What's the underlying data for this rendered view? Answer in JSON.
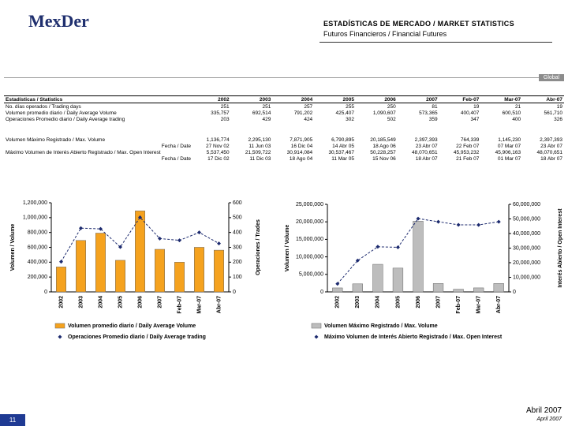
{
  "header": {
    "logo": "MexDer",
    "title": "ESTADÍSTICAS DE MERCADO / MARKET STATISTICS",
    "subtitle": "Futuros Financieros / Financial Futures"
  },
  "section": "Global",
  "table": {
    "header": [
      "Estadísticas / Statistics",
      "2002",
      "2003",
      "2004",
      "2005",
      "2006",
      "2007",
      "Feb-07",
      "Mar-07",
      "Abr-07"
    ],
    "groups": [
      [
        [
          "No. días operados / Trading days",
          "251",
          "251",
          "257",
          "255",
          "250",
          "81",
          "19",
          "21",
          "19"
        ],
        [
          "Volumen promedio diario / Daily Average Volume",
          "335,757",
          "692,514",
          "791,202",
          "425,407",
          "1,090,607",
          "573,365",
          "400,407",
          "600,510",
          "561,710"
        ],
        [
          "Operaciones Promedio diario / Daily Average trading",
          "203",
          "429",
          "424",
          "302",
          "502",
          "359",
          "347",
          "400",
          "326"
        ]
      ],
      [
        [
          "Volumen Máximo Registrado / Max. Volume",
          "1,136,774",
          "2,295,130",
          "7,871,905",
          "6,790,895",
          "20,185,549",
          "2,397,393",
          "764,339",
          "1,145,230",
          "2,397,393"
        ],
        [
          "Fecha / Date",
          "27 Nov 02",
          "11 Jun 03",
          "16 Dic 04",
          "14 Abr 05",
          "18 Ago 06",
          "23 Abr 07",
          "22 Feb 07",
          "07 Mar 07",
          "23 Abr 07"
        ],
        [
          "Máximo Volumen de Interés Abierto Registrado / Max. Open Interest",
          "5,537,450",
          "21,509,722",
          "30,914,084",
          "30,537,467",
          "50,228,257",
          "48,070,651",
          "45,953,232",
          "45,906,163",
          "48,070,651"
        ],
        [
          "Fecha / Date",
          "17 Dic 02",
          "11 Dic 03",
          "18 Ago 04",
          "11 Mar 05",
          "15 Nov 06",
          "18 Abr 07",
          "21 Feb 07",
          "01 Mar 07",
          "18 Abr 07"
        ]
      ]
    ]
  },
  "chart_data": [
    {
      "type": "bar",
      "ylabel": "Volumen / Volume",
      "y2label": "Operaciones / Trades",
      "categories": [
        "2002",
        "2003",
        "2004",
        "2005",
        "2006",
        "2007",
        "Feb-07",
        "Mar-07",
        "Abr-07"
      ],
      "series": [
        {
          "name": "Volumen promedio diario / Daily Average Volume",
          "color": "#f5a21e",
          "type": "bar",
          "values": [
            335757,
            692514,
            791202,
            425407,
            1090607,
            573365,
            400407,
            600510,
            561710
          ]
        },
        {
          "name": "Operaciones Promedio diario / Daily Average trading",
          "color": "#1c2a6e",
          "type": "line",
          "axis": "y2",
          "values": [
            203,
            429,
            424,
            302,
            502,
            359,
            347,
            400,
            326
          ]
        }
      ],
      "ylim": [
        0,
        1200000
      ],
      "yticks": [
        0,
        {
          "value": 200000,
          "label": "200,000"
        },
        {
          "value": 400000,
          "label": "400,000"
        },
        {
          "value": 600000,
          "label": "600,000"
        },
        {
          "value": 800000,
          "label": "800,000"
        },
        {
          "value": 1000000,
          "label": "1,000,000"
        },
        {
          "value": 1200000,
          "label": "1,200,000"
        }
      ],
      "y2lim": [
        0,
        600
      ],
      "y2ticks": [
        0,
        100,
        200,
        300,
        400,
        500,
        600
      ]
    },
    {
      "type": "bar",
      "ylabel": "Volumen / Volume",
      "y2label": "Interés Abierto / Open Interest",
      "categories": [
        "2002",
        "2003",
        "2004",
        "2005",
        "2006",
        "2007",
        "Feb-07",
        "Mar-07",
        "Abr-07"
      ],
      "series": [
        {
          "name": "Volumen Máximo Registrado / Max. Volume",
          "color": "#bdbdbd",
          "type": "bar",
          "values": [
            1136774,
            2295130,
            7871905,
            6790895,
            20185549,
            2397393,
            764339,
            1145230,
            2397393
          ]
        },
        {
          "name": "Máximo Volumen de Interés Abierto Registrado / Max. Open Interest",
          "color": "#1c2a6e",
          "type": "line",
          "axis": "y2",
          "values": [
            5537450,
            21509722,
            30914084,
            30537467,
            50228257,
            48070651,
            45953232,
            45906163,
            48070651
          ]
        }
      ],
      "ylim": [
        0,
        25000000
      ],
      "yticks": [
        0,
        {
          "value": 5000000,
          "label": "5,000,000"
        },
        {
          "value": 10000000,
          "label": "10,000,000"
        },
        {
          "value": 15000000,
          "label": "15,000,000"
        },
        {
          "value": 20000000,
          "label": "20,000,000"
        },
        {
          "value": 25000000,
          "label": "25,000,000"
        }
      ],
      "y2lim": [
        0,
        60000000
      ],
      "y2ticks": [
        0,
        {
          "value": 10000000,
          "label": "10,000,000"
        },
        {
          "value": 20000000,
          "label": "20,000,000"
        },
        {
          "value": 30000000,
          "label": "30,000,000"
        },
        {
          "value": 40000000,
          "label": "40,000,000"
        },
        {
          "value": 50000000,
          "label": "50,000,000"
        },
        {
          "value": 60000000,
          "label": "60,000,000"
        }
      ]
    }
  ],
  "footer": {
    "page": "11",
    "date": "Abril 2007",
    "date_en": "April 2007"
  }
}
